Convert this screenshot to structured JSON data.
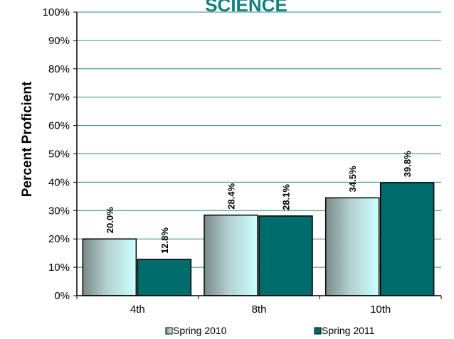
{
  "chart_data": {
    "type": "bar",
    "title": "SCIENCE",
    "xlabel": "",
    "ylabel": "Percent Proficient",
    "categories": [
      "4th",
      "8th",
      "10th"
    ],
    "series": [
      {
        "name": "Spring 2010",
        "values": [
          20.0,
          28.4,
          34.5
        ],
        "labels": [
          "20.0%",
          "28.4%",
          "34.5%"
        ]
      },
      {
        "name": "Spring 2011",
        "values": [
          12.8,
          28.1,
          39.8
        ],
        "labels": [
          "12.8%",
          "28.1%",
          "39.8%"
        ]
      }
    ],
    "ylim": [
      0,
      100
    ],
    "yticks": [
      "0%",
      "10%",
      "20%",
      "30%",
      "40%",
      "50%",
      "60%",
      "70%",
      "80%",
      "90%",
      "100%"
    ],
    "grid": true,
    "legend_position": "bottom",
    "colors": {
      "title": "#0f7f7f",
      "spring2010_light": "#ccffff",
      "spring2010_dark": "#7a8a8a",
      "spring2011": "#006b6b",
      "gridline": "#2e8b8b",
      "axis": "#000000"
    }
  }
}
